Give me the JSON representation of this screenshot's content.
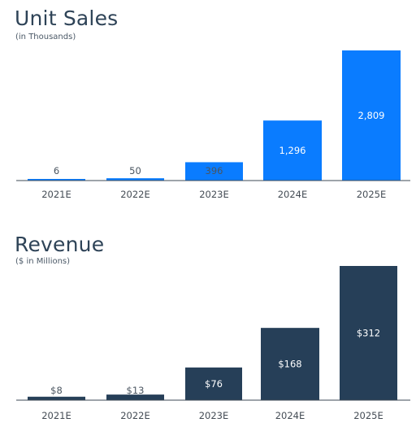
{
  "chart_data": [
    {
      "type": "bar",
      "title": "Unit Sales",
      "subtitle": "(in Thousands)",
      "categories": [
        "2021E",
        "2022E",
        "2023E",
        "2024E",
        "2025E"
      ],
      "values": [
        6,
        50,
        396,
        1296,
        2809
      ],
      "data_labels": [
        "6",
        "50",
        "396",
        "1,296",
        "2,809"
      ],
      "ylim": [
        0,
        2809
      ],
      "bar_color": "#0a7cff",
      "grid": false,
      "legend": "none"
    },
    {
      "type": "bar",
      "title": "Revenue",
      "subtitle": "($ in Millions)",
      "categories": [
        "2021E",
        "2022E",
        "2023E",
        "2024E",
        "2025E"
      ],
      "values": [
        8,
        13,
        76,
        168,
        312
      ],
      "data_labels": [
        "$8",
        "$13",
        "$76",
        "$168",
        "$312"
      ],
      "ylim": [
        0,
        312
      ],
      "bar_color": "#263f58",
      "grid": false,
      "legend": "none"
    }
  ]
}
